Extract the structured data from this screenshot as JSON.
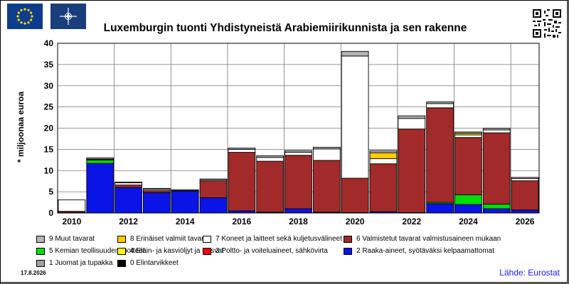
{
  "header": {
    "title": "Luxemburgin tuonti Yhdistyneistä Arabiemiirikunnista ja sen rakenne",
    "eu_flag_icon": "eu-flag-icon",
    "nato_flag_icon": "nato-flag-icon",
    "qr_icon": "qr-code-icon"
  },
  "footer": {
    "date": "17.8.2026",
    "source": "Lähde: Eurostat"
  },
  "chart_data": {
    "type": "bar",
    "stacked": true,
    "title": "Luxemburgin tuonti Yhdistyneistä Arabiemiirikunnista ja sen rakenne",
    "ylabel": "* miljoonaa euroa",
    "xlabel": "",
    "ylim": [
      0,
      40
    ],
    "yticks": [
      "0",
      "5",
      "10",
      "15",
      "20",
      "25",
      "30",
      "35",
      "40"
    ],
    "xtick_labels": [
      "2010",
      "2012",
      "2014",
      "2016",
      "2018",
      "2020",
      "2022",
      "2024",
      "2026"
    ],
    "categories": [
      "2010",
      "2011",
      "2012",
      "2013",
      "2014",
      "2015",
      "2016",
      "2017",
      "2018",
      "2019",
      "2020",
      "2021",
      "2022",
      "2023",
      "2024",
      "2025",
      "2026"
    ],
    "grid": true,
    "legend_position": "bottom",
    "series": [
      {
        "name": "0 Elintarvikkeet",
        "color": "#000000",
        "values": [
          0,
          0,
          0,
          0,
          0,
          0,
          0,
          0,
          0,
          0,
          0,
          0,
          0,
          0,
          0,
          0,
          0
        ]
      },
      {
        "name": "1 Juomat ja tupakka",
        "color": "#a0a0a0",
        "values": [
          0,
          0,
          0,
          0,
          0,
          0,
          0,
          0,
          0,
          0,
          0,
          0,
          0,
          0,
          0,
          0,
          0
        ]
      },
      {
        "name": "2 Raaka-aineet, syötäväksi kelpaamattomat",
        "color": "#0a14e6",
        "values": [
          0.1,
          11.7,
          6.0,
          4.8,
          5.2,
          3.6,
          0.5,
          0.2,
          1.0,
          0.2,
          0.1,
          0.3,
          0.1,
          2.2,
          2.0,
          1.0,
          0.7
        ]
      },
      {
        "name": "3 Poltto- ja voiteluaineet, sähkövirta",
        "color": "#ff0000",
        "values": [
          0,
          0,
          0,
          0,
          0,
          0,
          0,
          0,
          0,
          0,
          0,
          0,
          0,
          0,
          0,
          0,
          0
        ]
      },
      {
        "name": "4 Eläin- ja kasviöljyt ja -rasvat",
        "color": "#ffff00",
        "values": [
          0,
          0,
          0,
          0,
          0,
          0,
          0,
          0,
          0,
          0,
          0,
          0,
          0,
          0,
          0,
          0,
          0
        ]
      },
      {
        "name": "5 Kemian teollisuuden tuotteet",
        "color": "#00dd00",
        "values": [
          0,
          0.8,
          0,
          0,
          0,
          0,
          0,
          0,
          0,
          0,
          0,
          0,
          0,
          0.3,
          2.3,
          1.1,
          0
        ]
      },
      {
        "name": "6 Valmistetut tavarat valmistusaineen mukaan",
        "color": "#a32a2a",
        "values": [
          0.3,
          0.2,
          0.6,
          0.5,
          0.1,
          4.0,
          13.8,
          12.0,
          12.6,
          12.2,
          8.1,
          11.3,
          19.7,
          22.3,
          13.5,
          16.8,
          6.9
        ]
      },
      {
        "name": "7 Koneet ja laitteet sekä kuljetusvälineet",
        "color": "#ffffff",
        "values": [
          2.7,
          0,
          0.5,
          0.3,
          0.2,
          0.3,
          0.7,
          0.9,
          0.7,
          2.7,
          28.8,
          1.2,
          2.5,
          1.0,
          0.6,
          0.7,
          0.5
        ]
      },
      {
        "name": "8 Erinäiset valmiit tavarat",
        "color": "#ffcc00",
        "values": [
          0,
          0,
          0,
          0,
          0,
          0,
          0,
          0,
          0,
          0,
          0,
          1.4,
          0,
          0,
          0.4,
          0,
          0
        ]
      },
      {
        "name": "9 Muut tavarat",
        "color": "#b4b4b4",
        "values": [
          0,
          0.3,
          0.2,
          0.2,
          0,
          0.1,
          0.3,
          0.4,
          0.4,
          0.4,
          1.1,
          0.5,
          0.6,
          0.4,
          0.3,
          0.4,
          0.3
        ]
      }
    ]
  }
}
